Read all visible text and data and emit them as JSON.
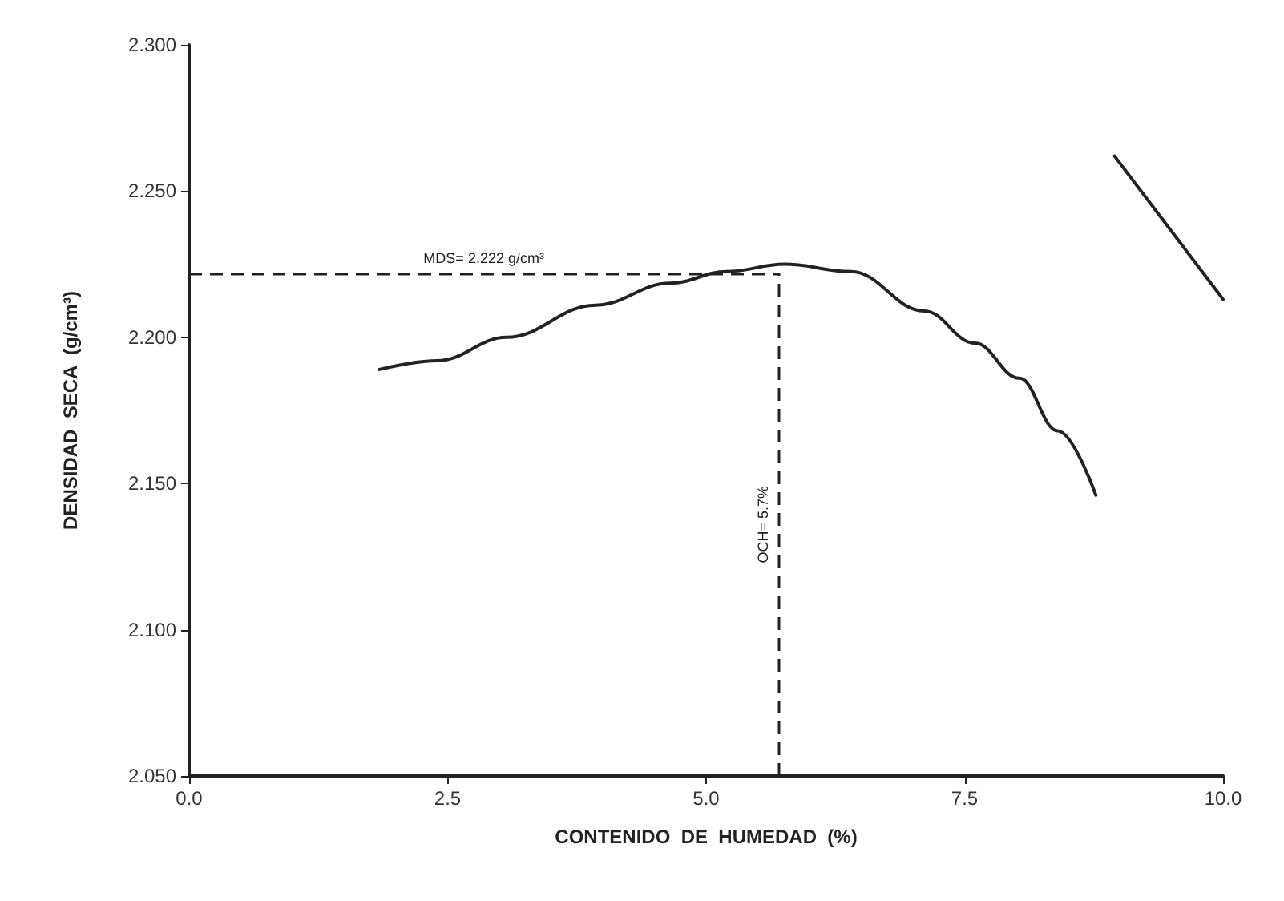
{
  "chart_data": {
    "type": "line",
    "xlabel": "CONTENIDO  DE  HUMEDAD  (%)",
    "ylabel": "DENSIDAD  SECA  (g/cm³)",
    "series": [
      {
        "color": "#222222",
        "x": [
          1.84,
          2.4,
          3.07,
          3.93,
          4.65,
          5.2,
          5.76,
          6.4,
          7.11,
          7.6,
          8.03,
          8.4,
          8.77
        ],
        "values": [
          2.189,
          2.192,
          2.2,
          2.211,
          2.2185,
          2.2225,
          2.225,
          2.2225,
          2.209,
          2.198,
          2.186,
          2.168,
          2.146
        ]
      },
      {
        "color": "#222222",
        "x": [
          8.95,
          10.0
        ],
        "values": [
          2.262,
          2.213
        ]
      }
    ],
    "xlim": [
      0,
      10
    ],
    "ylim": [
      2.05,
      2.3
    ],
    "xticks": [
      {
        "value": 0,
        "label": "0.0"
      },
      2.5,
      {
        "value": 5,
        "label": "5.0"
      },
      7.5,
      {
        "value": 10,
        "label": "10.0"
      }
    ],
    "yticks": [
      {
        "value": 2.05,
        "label": "2.050"
      },
      {
        "value": 2.1,
        "label": "2.100"
      },
      {
        "value": 2.15,
        "label": "2.150"
      },
      {
        "value": 2.2,
        "label": "2.200"
      },
      {
        "value": 2.25,
        "label": "2.250"
      },
      {
        "value": 2.3,
        "label": "2.300"
      }
    ],
    "ref_lines": [
      {
        "axis": "y",
        "value": 2.222,
        "label": "MDS= 2.222 g/cm³",
        "line_style": "dashed"
      },
      {
        "axis": "x",
        "value": 5.7,
        "label": "OCH= 5.7%",
        "line_style": "dashed"
      }
    ],
    "grid": false,
    "marker": "none",
    "line_style": "solid"
  }
}
